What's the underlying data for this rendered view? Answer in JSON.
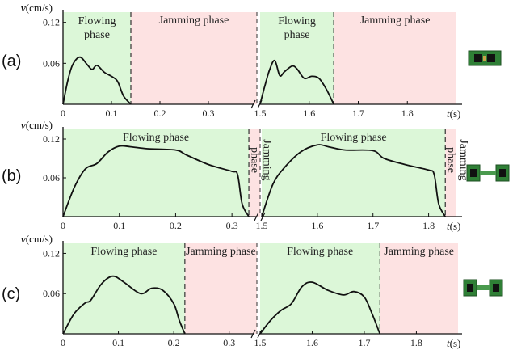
{
  "chart_data": [
    {
      "type": "line",
      "panel_label": "(a)",
      "ylabel": "v(cm/s)",
      "xlabel": "t(s)",
      "yticks": [
        "0.06",
        "0.12"
      ],
      "ylim": [
        0,
        0.135
      ],
      "left_axis": {
        "range": [
          0,
          0.4
        ],
        "ticks": [
          "0",
          "0.1",
          "0.2",
          "0.3"
        ]
      },
      "right_axis": {
        "range": [
          1.5,
          1.9
        ],
        "ticks": [
          "1.5",
          "1.6",
          "1.7",
          "1.8"
        ]
      },
      "phases": [
        {
          "label": "Flowing\nphase",
          "type": "flowing",
          "side": "left",
          "from": 0,
          "to": 0.14
        },
        {
          "label": "Jamming phase",
          "type": "jamming",
          "side": "left",
          "from": 0.14,
          "to": 0.4
        },
        {
          "label": "Flowing\nphase",
          "type": "flowing",
          "side": "right",
          "from": 1.5,
          "to": 1.65
        },
        {
          "label": "Jamming phase",
          "type": "jamming",
          "side": "right",
          "from": 1.65,
          "to": 1.9
        }
      ],
      "series": [
        {
          "side": "left",
          "x": [
            0,
            0.01,
            0.02,
            0.035,
            0.05,
            0.06,
            0.07,
            0.085,
            0.1,
            0.11,
            0.115,
            0.125,
            0.14
          ],
          "y": [
            0,
            0.035,
            0.058,
            0.069,
            0.058,
            0.051,
            0.057,
            0.047,
            0.041,
            0.036,
            0.03,
            0.012,
            0
          ]
        },
        {
          "side": "right",
          "x": [
            1.5,
            1.51,
            1.52,
            1.53,
            1.54,
            1.55,
            1.565,
            1.575,
            1.59,
            1.605,
            1.62,
            1.635,
            1.65
          ],
          "y": [
            0,
            0.028,
            0.052,
            0.064,
            0.042,
            0.048,
            0.056,
            0.052,
            0.038,
            0.041,
            0.038,
            0.022,
            0
          ]
        }
      ]
    },
    {
      "type": "line",
      "panel_label": "(b)",
      "ylabel": "v(cm/s)",
      "xlabel": "t(s)",
      "yticks": [
        "0.06",
        "0.12"
      ],
      "ylim": [
        0,
        0.135
      ],
      "left_axis": {
        "range": [
          0,
          0.35
        ],
        "ticks": [
          "0",
          "0.1",
          "0.2",
          "0.3"
        ]
      },
      "right_axis": {
        "range": [
          1.5,
          1.85
        ],
        "ticks": [
          "1.5",
          "1.6",
          "1.7",
          "1.8"
        ]
      },
      "phases": [
        {
          "label": "Flowing phase",
          "type": "flowing",
          "side": "left",
          "from": 0,
          "to": 0.33
        },
        {
          "label": "Jamming\nphase",
          "type": "jamming",
          "side": "left",
          "from": 0.33,
          "to": 0.35
        },
        {
          "label": "Flowing phase",
          "type": "flowing",
          "side": "right",
          "from": 1.5,
          "to": 1.83
        },
        {
          "label": "Jamming\nphase",
          "type": "jamming",
          "side": "right",
          "from": 1.83,
          "to": 1.85
        }
      ],
      "series": [
        {
          "side": "left",
          "x": [
            0,
            0.02,
            0.04,
            0.06,
            0.08,
            0.1,
            0.12,
            0.15,
            0.2,
            0.22,
            0.26,
            0.3,
            0.31,
            0.318,
            0.33
          ],
          "y": [
            0,
            0.045,
            0.074,
            0.082,
            0.1,
            0.109,
            0.108,
            0.105,
            0.103,
            0.095,
            0.08,
            0.07,
            0.065,
            0.02,
            0
          ]
        },
        {
          "side": "right",
          "x": [
            1.5,
            1.52,
            1.54,
            1.57,
            1.6,
            1.62,
            1.65,
            1.7,
            1.72,
            1.76,
            1.8,
            1.81,
            1.818,
            1.83
          ],
          "y": [
            0,
            0.05,
            0.075,
            0.1,
            0.111,
            0.108,
            0.103,
            0.102,
            0.09,
            0.08,
            0.072,
            0.065,
            0.02,
            0
          ]
        }
      ]
    },
    {
      "type": "line",
      "panel_label": "(c)",
      "ylabel": "v(cm/s)",
      "xlabel": "t(s)",
      "yticks": [
        "0.06",
        "0.12"
      ],
      "ylim": [
        0,
        0.135
      ],
      "left_axis": {
        "range": [
          0,
          0.35
        ],
        "ticks": [
          "0",
          "0.1",
          "0.2",
          "0.3"
        ]
      },
      "right_axis": {
        "range": [
          1.5,
          1.88
        ],
        "ticks": [
          "1.5",
          "1.6",
          "1.7",
          "1.8"
        ]
      },
      "phases": [
        {
          "label": "Flowing phase",
          "type": "flowing",
          "side": "left",
          "from": 0,
          "to": 0.22
        },
        {
          "label": "Jamming phase",
          "type": "jamming",
          "side": "left",
          "from": 0.22,
          "to": 0.35
        },
        {
          "label": "Flowing phase",
          "type": "flowing",
          "side": "right",
          "from": 1.5,
          "to": 1.73
        },
        {
          "label": "Jamming phase",
          "type": "jamming",
          "side": "right",
          "from": 1.73,
          "to": 1.88
        }
      ],
      "series": [
        {
          "side": "left",
          "x": [
            0,
            0.02,
            0.04,
            0.05,
            0.07,
            0.09,
            0.11,
            0.14,
            0.16,
            0.18,
            0.2,
            0.21,
            0.22
          ],
          "y": [
            0,
            0.03,
            0.046,
            0.05,
            0.075,
            0.086,
            0.077,
            0.06,
            0.068,
            0.065,
            0.045,
            0.02,
            0
          ]
        },
        {
          "side": "right",
          "x": [
            1.5,
            1.52,
            1.54,
            1.56,
            1.58,
            1.6,
            1.63,
            1.66,
            1.68,
            1.7,
            1.715,
            1.725,
            1.73
          ],
          "y": [
            0,
            0.02,
            0.035,
            0.045,
            0.07,
            0.077,
            0.065,
            0.058,
            0.063,
            0.055,
            0.03,
            0.01,
            0
          ]
        }
      ]
    }
  ],
  "colors": {
    "flowing": "#dcf7d8",
    "jamming": "#fde2e2",
    "line": "#111111",
    "divider": "#333333"
  },
  "robot_icon": "gripper-robot-icon"
}
